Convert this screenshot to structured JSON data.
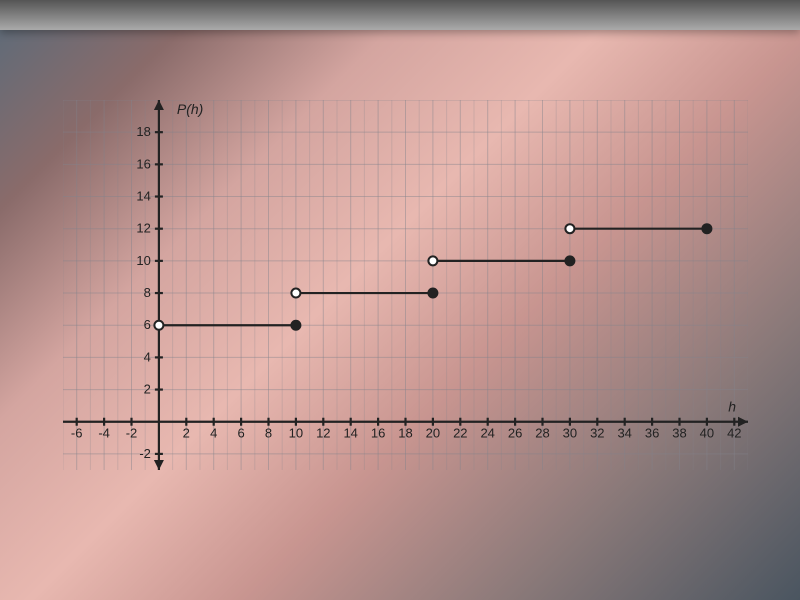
{
  "chart": {
    "type": "step-function",
    "y_axis_title": "P(h)",
    "x_axis_title": "h",
    "xlim": [
      -7,
      43
    ],
    "ylim": [
      -3,
      20
    ],
    "x_ticks": [
      -6,
      -4,
      -2,
      2,
      4,
      6,
      8,
      10,
      12,
      14,
      16,
      18,
      20,
      22,
      24,
      26,
      28,
      30,
      32,
      34,
      36,
      38,
      40,
      42
    ],
    "y_ticks": [
      -2,
      2,
      4,
      6,
      8,
      10,
      12,
      14,
      16,
      18
    ],
    "x_tick_step": 2,
    "y_tick_step": 2,
    "grid_color": "#828290",
    "axis_color": "#222222",
    "line_color": "#222222",
    "background_gradient": [
      "#5a6b7a",
      "#d4a5a0",
      "#e8b8b0",
      "#4a5560"
    ],
    "font_family": "Arial",
    "tick_fontsize": 13,
    "title_fontsize": 14,
    "marker_radius": 4.5,
    "line_width": 2.2,
    "segments": [
      {
        "x_start": 0,
        "x_end": 10,
        "y": 6,
        "start_open": true,
        "end_open": false
      },
      {
        "x_start": 10,
        "x_end": 20,
        "y": 8,
        "start_open": true,
        "end_open": false
      },
      {
        "x_start": 20,
        "x_end": 30,
        "y": 10,
        "start_open": true,
        "end_open": false
      },
      {
        "x_start": 30,
        "x_end": 40,
        "y": 12,
        "start_open": true,
        "end_open": false
      }
    ]
  }
}
